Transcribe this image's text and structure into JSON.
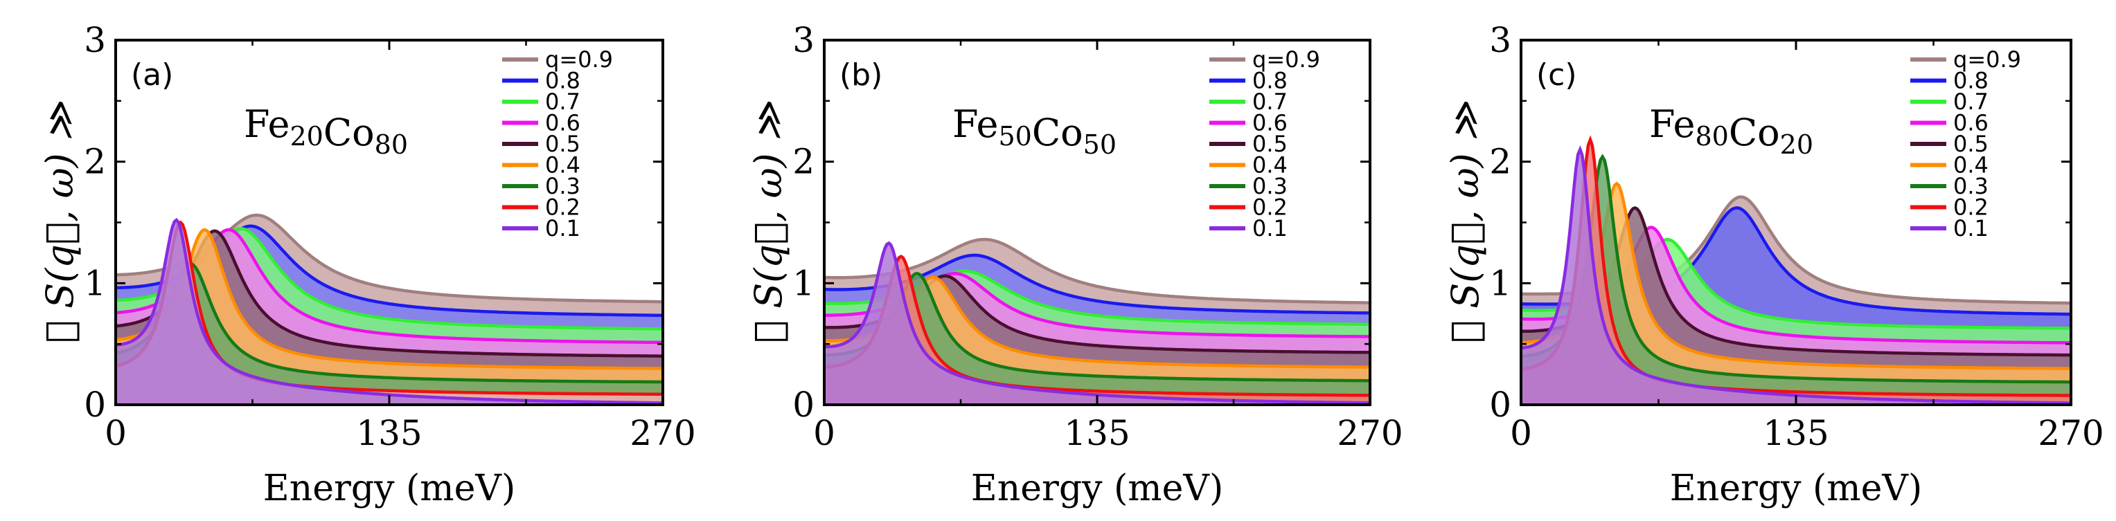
{
  "chart_data": [
    {
      "type": "area",
      "panel_label": "(a)",
      "title_base": [
        "Fe",
        "Co"
      ],
      "title_sub": [
        "20",
        "80"
      ],
      "xlabel": "Energy (meV)",
      "ylabel": "≪ S(q⃗, ω) ≫",
      "xlim": [
        0,
        270
      ],
      "ylim": [
        0,
        3
      ],
      "xticks": [
        "0",
        "135",
        "270"
      ],
      "yticks": [
        "0",
        "1",
        "2",
        "3"
      ],
      "grid": false,
      "legend_position": "top-right",
      "series": [
        {
          "name": "q=0.9",
          "color": "#a07f7f",
          "fill": "#c9a6a6",
          "peak_energy": 70,
          "peak_height": 1.56,
          "width": 55,
          "baseline_start": 0.98,
          "tail": 0.83
        },
        {
          "name": "0.8",
          "color": "#1a1aee",
          "fill": "#7a7af5",
          "peak_energy": 67,
          "peak_height": 1.47,
          "width": 50,
          "baseline_start": 0.88,
          "tail": 0.72
        },
        {
          "name": "0.7",
          "color": "#33ee33",
          "fill": "#7cf77c",
          "peak_energy": 62,
          "peak_height": 1.45,
          "width": 45,
          "baseline_start": 0.77,
          "tail": 0.61
        },
        {
          "name": "0.6",
          "color": "#ee11ee",
          "fill": "#f27ef2",
          "peak_energy": 56,
          "peak_height": 1.44,
          "width": 40,
          "baseline_start": 0.66,
          "tail": 0.5
        },
        {
          "name": "0.5",
          "color": "#4a0f30",
          "fill": "#8c6a7c",
          "peak_energy": 49,
          "peak_height": 1.43,
          "width": 33,
          "baseline_start": 0.55,
          "tail": 0.39
        },
        {
          "name": "0.4",
          "color": "#ff8c00",
          "fill": "#ffb85c",
          "peak_energy": 44,
          "peak_height": 1.44,
          "width": 26,
          "baseline_start": 0.45,
          "tail": 0.29
        },
        {
          "name": "0.3",
          "color": "#157a15",
          "fill": "#6aa86a",
          "peak_energy": 37,
          "peak_height": 1.16,
          "width": 27,
          "baseline_start": 0.32,
          "tail": 0.18
        },
        {
          "name": "0.2",
          "color": "#ee1111",
          "fill": "#f5b0b0",
          "peak_energy": 32,
          "peak_height": 1.5,
          "width": 18,
          "baseline_start": 0.22,
          "tail": 0.08
        },
        {
          "name": "0.1",
          "color": "#8a2be2",
          "fill": "#b078d8",
          "peak_energy": 30,
          "peak_height": 1.52,
          "width": 17,
          "baseline_start": 0.4,
          "tail": 0.0
        }
      ]
    },
    {
      "type": "area",
      "panel_label": "(b)",
      "title_base": [
        "Fe",
        "Co"
      ],
      "title_sub": [
        "50",
        "50"
      ],
      "xlabel": "Energy (meV)",
      "ylabel": "≪ S(q⃗, ω) ≫",
      "xlim": [
        0,
        270
      ],
      "ylim": [
        0,
        3
      ],
      "xticks": [
        "0",
        "135",
        "270"
      ],
      "yticks": [
        "0",
        "1",
        "2",
        "3"
      ],
      "grid": false,
      "legend_position": "top-right",
      "series": [
        {
          "name": "q=0.9",
          "color": "#a07f7f",
          "fill": "#c9a6a6",
          "peak_energy": 80,
          "peak_height": 1.36,
          "width": 65,
          "baseline_start": 0.98,
          "tail": 0.82
        },
        {
          "name": "0.8",
          "color": "#1a1aee",
          "fill": "#7a7af5",
          "peak_energy": 75,
          "peak_height": 1.23,
          "width": 60,
          "baseline_start": 0.89,
          "tail": 0.74
        },
        {
          "name": "0.7",
          "color": "#33ee33",
          "fill": "#7cf77c",
          "peak_energy": 70,
          "peak_height": 1.1,
          "width": 55,
          "baseline_start": 0.78,
          "tail": 0.65
        },
        {
          "name": "0.6",
          "color": "#ee11ee",
          "fill": "#f27ef2",
          "peak_energy": 65,
          "peak_height": 1.08,
          "width": 48,
          "baseline_start": 0.68,
          "tail": 0.55
        },
        {
          "name": "0.5",
          "color": "#4a0f30",
          "fill": "#8c6a7c",
          "peak_energy": 60,
          "peak_height": 1.06,
          "width": 40,
          "baseline_start": 0.58,
          "tail": 0.42
        },
        {
          "name": "0.4",
          "color": "#ff8c00",
          "fill": "#ffb85c",
          "peak_energy": 54,
          "peak_height": 1.05,
          "width": 33,
          "baseline_start": 0.47,
          "tail": 0.3
        },
        {
          "name": "0.3",
          "color": "#157a15",
          "fill": "#6aa86a",
          "peak_energy": 46,
          "peak_height": 1.08,
          "width": 26,
          "baseline_start": 0.35,
          "tail": 0.19
        },
        {
          "name": "0.2",
          "color": "#ee1111",
          "fill": "#f57a7a",
          "peak_energy": 38,
          "peak_height": 1.22,
          "width": 20,
          "baseline_start": 0.24,
          "tail": 0.07
        },
        {
          "name": "0.1",
          "color": "#8a2be2",
          "fill": "#b078d8",
          "peak_energy": 32,
          "peak_height": 1.33,
          "width": 18,
          "baseline_start": 0.4,
          "tail": 0.0
        }
      ]
    },
    {
      "type": "area",
      "panel_label": "(c)",
      "title_base": [
        "Fe",
        "Co"
      ],
      "title_sub": [
        "80",
        "20"
      ],
      "xlabel": "Energy (meV)",
      "ylabel": "≪ S(q⃗, ω) ≫",
      "xlim": [
        0,
        270
      ],
      "ylim": [
        0,
        3
      ],
      "xticks": [
        "0",
        "135",
        "270"
      ],
      "yticks": [
        "0",
        "1",
        "2",
        "3"
      ],
      "grid": false,
      "legend_position": "top-right",
      "series": [
        {
          "name": "q=0.9",
          "color": "#a07f7f",
          "fill": "#c9a6a6",
          "peak_energy": 108,
          "peak_height": 1.71,
          "width": 42,
          "baseline_start": 0.88,
          "tail": 0.82
        },
        {
          "name": "0.8",
          "color": "#1a1aee",
          "fill": "#6a6af2",
          "peak_energy": 106,
          "peak_height": 1.62,
          "width": 40,
          "baseline_start": 0.8,
          "tail": 0.73
        },
        {
          "name": "0.7",
          "color": "#33ee33",
          "fill": "#7cf77c",
          "peak_energy": 72,
          "peak_height": 1.36,
          "width": 35,
          "baseline_start": 0.74,
          "tail": 0.62
        },
        {
          "name": "0.6",
          "color": "#ee11ee",
          "fill": "#f27ef2",
          "peak_energy": 64,
          "peak_height": 1.46,
          "width": 30,
          "baseline_start": 0.66,
          "tail": 0.5
        },
        {
          "name": "0.5",
          "color": "#4a0f30",
          "fill": "#8c6a7c",
          "peak_energy": 56,
          "peak_height": 1.62,
          "width": 25,
          "baseline_start": 0.55,
          "tail": 0.4
        },
        {
          "name": "0.4",
          "color": "#ff8c00",
          "fill": "#ffb85c",
          "peak_energy": 47,
          "peak_height": 1.82,
          "width": 20,
          "baseline_start": 0.45,
          "tail": 0.29
        },
        {
          "name": "0.3",
          "color": "#157a15",
          "fill": "#6aa86a",
          "peak_energy": 40,
          "peak_height": 2.04,
          "width": 16,
          "baseline_start": 0.33,
          "tail": 0.18
        },
        {
          "name": "0.2",
          "color": "#ee1111",
          "fill": "#f57a7a",
          "peak_energy": 34,
          "peak_height": 2.18,
          "width": 13,
          "baseline_start": 0.22,
          "tail": 0.07
        },
        {
          "name": "0.1",
          "color": "#8a2be2",
          "fill": "#b078d8",
          "peak_energy": 29,
          "peak_height": 2.1,
          "width": 13,
          "baseline_start": 0.38,
          "tail": 0.0
        }
      ]
    }
  ]
}
